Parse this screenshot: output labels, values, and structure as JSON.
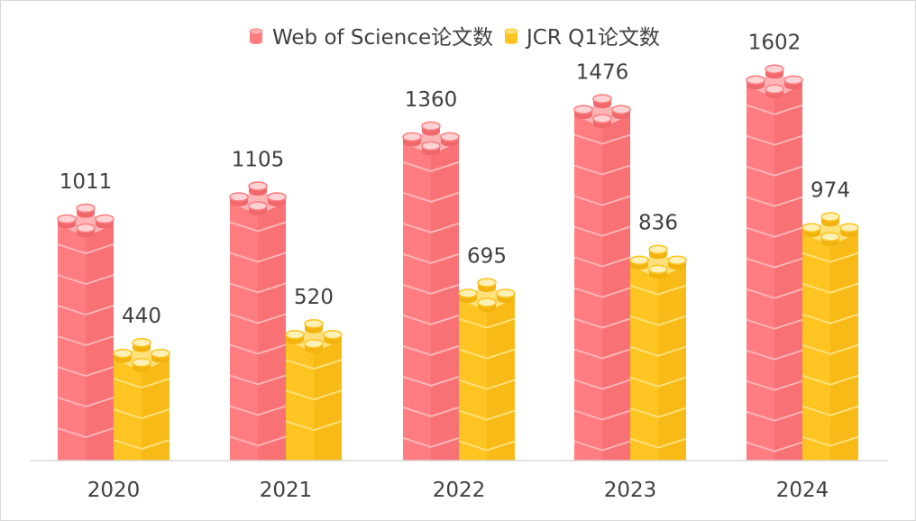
{
  "chart_data": {
    "type": "bar",
    "title": "",
    "xlabel": "",
    "ylabel": "",
    "ylim": [
      0,
      1800
    ],
    "grid": false,
    "legend_position": "top",
    "categories": [
      "2020",
      "2021",
      "2022",
      "2023",
      "2024"
    ],
    "series": [
      {
        "name": "Web of Science论文数",
        "values": [
          1011,
          1105,
          1360,
          1476,
          1602
        ],
        "color": "#ff7c80"
      },
      {
        "name": "JCR Q1论文数",
        "values": [
          440,
          520,
          695,
          836,
          974
        ],
        "color": "#fec422"
      }
    ]
  }
}
